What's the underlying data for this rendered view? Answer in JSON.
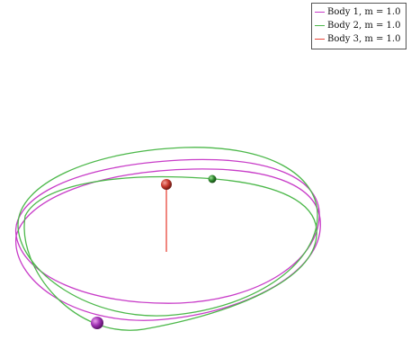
{
  "legend": {
    "entries": [
      {
        "label": "Body 1, m = 1.0",
        "color": "#c83cc8"
      },
      {
        "label": "Body 2, m = 1.0",
        "color": "#4cb84a"
      },
      {
        "label": "Body 3, m = 1.0",
        "color": "#e8463a"
      }
    ]
  },
  "bodies": [
    {
      "name": "Body 1",
      "mass": 1.0,
      "color": "#c83cc8",
      "ball": "#a032b4"
    },
    {
      "name": "Body 2",
      "mass": 1.0,
      "color": "#4cb84a",
      "ball": "#2f8a2d"
    },
    {
      "name": "Body 3",
      "mass": 1.0,
      "color": "#e8463a",
      "ball": "#c8382c"
    }
  ]
}
